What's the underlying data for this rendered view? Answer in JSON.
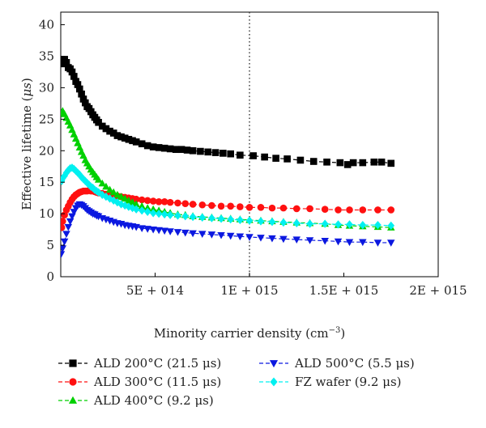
{
  "chart_data": {
    "type": "scatter",
    "xlabel": "Minority carrier density (cm",
    "xlabel_superscript": "−3",
    "xlabel_close": ")",
    "ylabel": "Effective lifetime (",
    "ylabel_unit": "μs",
    "ylabel_close": ")",
    "xlim": [
      0,
      2000000000000000.0
    ],
    "ylim": [
      0,
      42
    ],
    "x_ticks": [
      {
        "value": 500000000000000.0,
        "label": "5E + 014"
      },
      {
        "value": 1000000000000000.0,
        "label": "1E + 015"
      },
      {
        "value": 1500000000000000.0,
        "label": "1.5E + 015"
      },
      {
        "value": 2000000000000000.0,
        "label": "2E + 015"
      }
    ],
    "y_ticks": [
      {
        "value": 0,
        "label": "0"
      },
      {
        "value": 5,
        "label": "5"
      },
      {
        "value": 10,
        "label": "10"
      },
      {
        "value": 15,
        "label": "15"
      },
      {
        "value": 20,
        "label": "20"
      },
      {
        "value": 25,
        "label": "25"
      },
      {
        "value": 30,
        "label": "30"
      },
      {
        "value": 35,
        "label": "35"
      },
      {
        "value": 40,
        "label": "40"
      }
    ],
    "reference_line_x": 1000000000000000.0,
    "legend_position": "bottom",
    "series": [
      {
        "name": "ALD 200°C (21.5 μs)",
        "marker": "square",
        "color": "#000000",
        "x": [
          10000000000000.0,
          20000000000000.0,
          30000000000000.0,
          40000000000000.0,
          50000000000000.0,
          60000000000000.0,
          70000000000000.0,
          80000000000000.0,
          90000000000000.0,
          100000000000000.0,
          110000000000000.0,
          120000000000000.0,
          130000000000000.0,
          140000000000000.0,
          150000000000000.0,
          160000000000000.0,
          170000000000000.0,
          180000000000000.0,
          190000000000000.0,
          200000000000000.0,
          220000000000000.0,
          240000000000000.0,
          260000000000000.0,
          280000000000000.0,
          300000000000000.0,
          320000000000000.0,
          340000000000000.0,
          360000000000000.0,
          380000000000000.0,
          400000000000000.0,
          430000000000000.0,
          460000000000000.0,
          490000000000000.0,
          520000000000000.0,
          550000000000000.0,
          580000000000000.0,
          610000000000000.0,
          640000000000000.0,
          670000000000000.0,
          700000000000000.0,
          740000000000000.0,
          780000000000000.0,
          820000000000000.0,
          860000000000000.0,
          900000000000000.0,
          950000000000000.0,
          1020000000000000.0,
          1080000000000000.0,
          1140000000000000.0,
          1200000000000000.0,
          1270000000000000.0,
          1340000000000000.0,
          1410000000000000.0,
          1480000000000000.0,
          1520000000000000.0,
          1550000000000000.0,
          1600000000000000.0,
          1660000000000000.0,
          1700000000000000.0,
          1750000000000000.0
        ],
        "y": [
          33.8,
          34.5,
          34.0,
          33.2,
          33.0,
          32.5,
          31.8,
          31.0,
          30.5,
          29.8,
          29.0,
          28.2,
          27.6,
          27.0,
          26.7,
          26.2,
          25.7,
          25.3,
          24.9,
          24.5,
          23.9,
          23.5,
          23.1,
          22.8,
          22.4,
          22.2,
          22.0,
          21.8,
          21.6,
          21.4,
          21.1,
          20.8,
          20.6,
          20.5,
          20.4,
          20.3,
          20.2,
          20.2,
          20.1,
          20.0,
          19.9,
          19.8,
          19.7,
          19.6,
          19.5,
          19.3,
          19.2,
          19.0,
          18.8,
          18.7,
          18.5,
          18.3,
          18.2,
          18.1,
          17.8,
          18.1,
          18.1,
          18.2,
          18.2,
          18.0
        ]
      },
      {
        "name": "ALD 300°C (11.5 μs)",
        "marker": "circle",
        "color": "#ff1010",
        "x": [
          5000000000000.0,
          10000000000000.0,
          20000000000000.0,
          30000000000000.0,
          40000000000000.0,
          50000000000000.0,
          60000000000000.0,
          70000000000000.0,
          80000000000000.0,
          90000000000000.0,
          100000000000000.0,
          110000000000000.0,
          120000000000000.0,
          130000000000000.0,
          140000000000000.0,
          150000000000000.0,
          160000000000000.0,
          170000000000000.0,
          180000000000000.0,
          190000000000000.0,
          200000000000000.0,
          220000000000000.0,
          240000000000000.0,
          260000000000000.0,
          280000000000000.0,
          300000000000000.0,
          320000000000000.0,
          340000000000000.0,
          360000000000000.0,
          380000000000000.0,
          400000000000000.0,
          430000000000000.0,
          460000000000000.0,
          490000000000000.0,
          520000000000000.0,
          550000000000000.0,
          580000000000000.0,
          620000000000000.0,
          660000000000000.0,
          700000000000000.0,
          750000000000000.0,
          800000000000000.0,
          850000000000000.0,
          900000000000000.0,
          950000000000000.0,
          1000000000000000.0,
          1060000000000000.0,
          1120000000000000.0,
          1180000000000000.0,
          1250000000000000.0,
          1320000000000000.0,
          1400000000000000.0,
          1470000000000000.0,
          1530000000000000.0,
          1600000000000000.0,
          1680000000000000.0,
          1750000000000000.0
        ],
        "y": [
          7.8,
          8.8,
          9.8,
          10.6,
          11.2,
          11.8,
          12.3,
          12.7,
          13.0,
          13.2,
          13.4,
          13.5,
          13.6,
          13.6,
          13.6,
          13.7,
          13.6,
          13.6,
          13.5,
          13.4,
          13.3,
          13.2,
          13.1,
          13.0,
          12.9,
          12.8,
          12.7,
          12.6,
          12.5,
          12.4,
          12.3,
          12.2,
          12.1,
          12.0,
          11.9,
          11.9,
          11.8,
          11.7,
          11.6,
          11.5,
          11.4,
          11.3,
          11.2,
          11.2,
          11.1,
          11.0,
          11.0,
          10.9,
          10.9,
          10.8,
          10.8,
          10.7,
          10.6,
          10.6,
          10.6,
          10.6,
          10.6
        ]
      },
      {
        "name": "ALD 400°C (9.2 μs)",
        "marker": "triangle-up",
        "color": "#00d000",
        "x": [
          5000000000000.0,
          10000000000000.0,
          20000000000000.0,
          30000000000000.0,
          40000000000000.0,
          50000000000000.0,
          60000000000000.0,
          70000000000000.0,
          80000000000000.0,
          90000000000000.0,
          100000000000000.0,
          110000000000000.0,
          120000000000000.0,
          130000000000000.0,
          140000000000000.0,
          150000000000000.0,
          160000000000000.0,
          170000000000000.0,
          180000000000000.0,
          190000000000000.0,
          200000000000000.0,
          220000000000000.0,
          240000000000000.0,
          260000000000000.0,
          280000000000000.0,
          300000000000000.0,
          320000000000000.0,
          340000000000000.0,
          360000000000000.0,
          380000000000000.0,
          400000000000000.0,
          430000000000000.0,
          460000000000000.0,
          490000000000000.0,
          520000000000000.0,
          550000000000000.0,
          580000000000000.0,
          620000000000000.0,
          660000000000000.0,
          700000000000000.0,
          750000000000000.0,
          800000000000000.0,
          850000000000000.0,
          900000000000000.0,
          950000000000000.0,
          1000000000000000.0,
          1060000000000000.0,
          1120000000000000.0,
          1180000000000000.0,
          1250000000000000.0,
          1320000000000000.0,
          1400000000000000.0,
          1470000000000000.0,
          1530000000000000.0,
          1600000000000000.0,
          1680000000000000.0,
          1750000000000000.0
        ],
        "y": [
          26.0,
          26.3,
          25.8,
          25.2,
          24.6,
          24.0,
          23.3,
          22.6,
          21.9,
          21.2,
          20.5,
          19.8,
          19.2,
          18.5,
          18.0,
          17.5,
          17.0,
          16.6,
          16.2,
          15.8,
          15.4,
          14.8,
          14.3,
          13.8,
          13.4,
          13.0,
          12.7,
          12.4,
          12.1,
          11.8,
          11.5,
          11.2,
          10.9,
          10.7,
          10.5,
          10.3,
          10.1,
          9.9,
          9.8,
          9.6,
          9.5,
          9.4,
          9.3,
          9.2,
          9.1,
          9.0,
          8.9,
          8.8,
          8.7,
          8.6,
          8.5,
          8.4,
          8.2,
          8.1,
          8.0,
          7.9,
          7.8
        ]
      },
      {
        "name": "ALD 500°C (5.5 μs)",
        "marker": "triangle-down",
        "color": "#0b18e0",
        "x": [
          2000000000000.0,
          10000000000000.0,
          20000000000000.0,
          30000000000000.0,
          40000000000000.0,
          50000000000000.0,
          60000000000000.0,
          70000000000000.0,
          80000000000000.0,
          90000000000000.0,
          100000000000000.0,
          110000000000000.0,
          120000000000000.0,
          130000000000000.0,
          140000000000000.0,
          150000000000000.0,
          160000000000000.0,
          170000000000000.0,
          180000000000000.0,
          190000000000000.0,
          200000000000000.0,
          220000000000000.0,
          240000000000000.0,
          260000000000000.0,
          280000000000000.0,
          300000000000000.0,
          320000000000000.0,
          340000000000000.0,
          360000000000000.0,
          380000000000000.0,
          400000000000000.0,
          430000000000000.0,
          460000000000000.0,
          490000000000000.0,
          520000000000000.0,
          550000000000000.0,
          580000000000000.0,
          620000000000000.0,
          660000000000000.0,
          700000000000000.0,
          750000000000000.0,
          800000000000000.0,
          850000000000000.0,
          900000000000000.0,
          950000000000000.0,
          1000000000000000.0,
          1060000000000000.0,
          1120000000000000.0,
          1180000000000000.0,
          1250000000000000.0,
          1320000000000000.0,
          1400000000000000.0,
          1470000000000000.0,
          1530000000000000.0,
          1600000000000000.0,
          1680000000000000.0,
          1750000000000000.0
        ],
        "y": [
          3.6,
          4.5,
          5.6,
          6.8,
          7.9,
          8.8,
          9.6,
          10.3,
          10.9,
          11.3,
          11.5,
          11.4,
          11.2,
          10.9,
          10.6,
          10.4,
          10.2,
          10.0,
          9.9,
          9.7,
          9.6,
          9.3,
          9.1,
          8.9,
          8.7,
          8.5,
          8.4,
          8.2,
          8.1,
          8.0,
          7.9,
          7.7,
          7.6,
          7.5,
          7.4,
          7.3,
          7.2,
          7.1,
          7.0,
          6.9,
          6.8,
          6.7,
          6.6,
          6.5,
          6.4,
          6.3,
          6.2,
          6.1,
          6.0,
          5.9,
          5.8,
          5.7,
          5.6,
          5.5,
          5.5,
          5.4,
          5.4
        ]
      },
      {
        "name": "FZ wafer (9.2 μs)",
        "marker": "diamond",
        "color": "#00f0f0",
        "x": [
          5000000000000.0,
          10000000000000.0,
          20000000000000.0,
          30000000000000.0,
          40000000000000.0,
          50000000000000.0,
          60000000000000.0,
          70000000000000.0,
          80000000000000.0,
          90000000000000.0,
          100000000000000.0,
          110000000000000.0,
          120000000000000.0,
          130000000000000.0,
          140000000000000.0,
          150000000000000.0,
          160000000000000.0,
          170000000000000.0,
          180000000000000.0,
          190000000000000.0,
          200000000000000.0,
          220000000000000.0,
          240000000000000.0,
          260000000000000.0,
          280000000000000.0,
          300000000000000.0,
          320000000000000.0,
          340000000000000.0,
          360000000000000.0,
          380000000000000.0,
          400000000000000.0,
          430000000000000.0,
          460000000000000.0,
          490000000000000.0,
          520000000000000.0,
          550000000000000.0,
          580000000000000.0,
          620000000000000.0,
          660000000000000.0,
          700000000000000.0,
          750000000000000.0,
          800000000000000.0,
          850000000000000.0,
          900000000000000.0,
          950000000000000.0,
          1000000000000000.0,
          1060000000000000.0,
          1120000000000000.0,
          1180000000000000.0,
          1250000000000000.0,
          1320000000000000.0,
          1400000000000000.0,
          1470000000000000.0,
          1530000000000000.0,
          1600000000000000.0,
          1680000000000000.0,
          1750000000000000.0
        ],
        "y": [
          15.2,
          15.6,
          16.0,
          16.5,
          16.9,
          17.2,
          17.3,
          17.1,
          16.8,
          16.5,
          16.2,
          15.8,
          15.5,
          15.2,
          14.9,
          14.6,
          14.3,
          14.1,
          13.8,
          13.6,
          13.4,
          13.0,
          12.7,
          12.4,
          12.1,
          11.8,
          11.5,
          11.3,
          11.1,
          10.9,
          10.7,
          10.5,
          10.3,
          10.1,
          10.0,
          9.9,
          9.8,
          9.7,
          9.6,
          9.5,
          9.4,
          9.3,
          9.2,
          9.1,
          9.0,
          8.9,
          8.8,
          8.7,
          8.6,
          8.5,
          8.4,
          8.4,
          8.3,
          8.3,
          8.2,
          8.2,
          8.1
        ]
      }
    ]
  }
}
